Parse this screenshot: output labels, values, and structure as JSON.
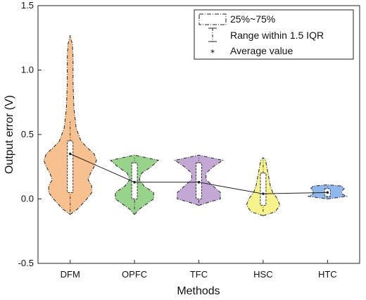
{
  "chart_data": {
    "type": "violin",
    "xlabel": "Methods",
    "ylabel": "Output error (V)",
    "ylim": [
      -0.5,
      1.5
    ],
    "yticks": [
      -0.5,
      0.0,
      0.5,
      1.0,
      1.5
    ],
    "ytick_labels": [
      "-0.5",
      "0.0",
      "0.5",
      "1.0",
      "1.5"
    ],
    "categories": [
      "DFM",
      "OPFC",
      "TFC",
      "HSC",
      "HTC"
    ],
    "colors": [
      "#F7C08F",
      "#98D38C",
      "#C3A8D6",
      "#F6F28C",
      "#8FB7EC"
    ],
    "violins": [
      {
        "name": "DFM",
        "min": -0.12,
        "max": 1.27,
        "q1": 0.05,
        "median": 0.2,
        "q3": 0.45,
        "whisker_low": -0.1,
        "whisker_high": 0.6,
        "mean": 0.35,
        "profile": [
          [
            -0.12,
            0.0
          ],
          [
            -0.08,
            0.03
          ],
          [
            0.0,
            0.07
          ],
          [
            0.05,
            0.09
          ],
          [
            0.1,
            0.09
          ],
          [
            0.15,
            0.075
          ],
          [
            0.2,
            0.085
          ],
          [
            0.25,
            0.1
          ],
          [
            0.3,
            0.11
          ],
          [
            0.35,
            0.1
          ],
          [
            0.4,
            0.07
          ],
          [
            0.45,
            0.045
          ],
          [
            0.55,
            0.025
          ],
          [
            0.7,
            0.016
          ],
          [
            0.9,
            0.012
          ],
          [
            1.1,
            0.012
          ],
          [
            1.2,
            0.009
          ],
          [
            1.27,
            0.0
          ]
        ]
      },
      {
        "name": "OPFC",
        "min": -0.12,
        "max": 0.34,
        "q1": 0.0,
        "median": 0.12,
        "q3": 0.28,
        "whisker_low": -0.08,
        "whisker_high": 0.32,
        "mean": 0.13,
        "profile": [
          [
            -0.12,
            0.0
          ],
          [
            -0.08,
            0.02
          ],
          [
            0.0,
            0.08
          ],
          [
            0.05,
            0.08
          ],
          [
            0.1,
            0.04
          ],
          [
            0.15,
            0.02
          ],
          [
            0.2,
            0.03
          ],
          [
            0.25,
            0.07
          ],
          [
            0.3,
            0.1
          ],
          [
            0.34,
            0.0
          ]
        ]
      },
      {
        "name": "TFC",
        "min": -0.05,
        "max": 0.34,
        "q1": 0.0,
        "median": 0.12,
        "q3": 0.28,
        "whisker_low": -0.03,
        "whisker_high": 0.32,
        "mean": 0.13,
        "profile": [
          [
            -0.05,
            0.0
          ],
          [
            -0.02,
            0.05
          ],
          [
            0.0,
            0.09
          ],
          [
            0.05,
            0.09
          ],
          [
            0.1,
            0.06
          ],
          [
            0.15,
            0.03
          ],
          [
            0.2,
            0.03
          ],
          [
            0.25,
            0.06
          ],
          [
            0.3,
            0.1
          ],
          [
            0.34,
            0.0
          ]
        ]
      },
      {
        "name": "HSC",
        "min": -0.13,
        "max": 0.32,
        "q1": -0.05,
        "median": 0.05,
        "q3": 0.2,
        "whisker_low": -0.1,
        "whisker_high": 0.3,
        "mean": 0.04,
        "profile": [
          [
            -0.13,
            0.0
          ],
          [
            -0.1,
            0.05
          ],
          [
            -0.05,
            0.07
          ],
          [
            0.0,
            0.06
          ],
          [
            0.05,
            0.04
          ],
          [
            0.1,
            0.03
          ],
          [
            0.15,
            0.025
          ],
          [
            0.2,
            0.02
          ],
          [
            0.25,
            0.015
          ],
          [
            0.3,
            0.01
          ],
          [
            0.32,
            0.0
          ]
        ]
      },
      {
        "name": "HTC",
        "min": 0.0,
        "max": 0.11,
        "q1": 0.02,
        "median": 0.05,
        "q3": 0.08,
        "whisker_low": 0.01,
        "whisker_high": 0.1,
        "mean": 0.05,
        "profile": [
          [
            0.0,
            0.0
          ],
          [
            0.02,
            0.08
          ],
          [
            0.04,
            0.06
          ],
          [
            0.06,
            0.06
          ],
          [
            0.08,
            0.07
          ],
          [
            0.1,
            0.06
          ],
          [
            0.11,
            0.0
          ]
        ]
      }
    ],
    "mean_line": [
      0.35,
      0.13,
      0.13,
      0.04,
      0.05
    ],
    "legend": {
      "position": "top-right",
      "entries": [
        "25%~75%",
        "Range within 1.5 IQR",
        "Average value"
      ]
    }
  }
}
